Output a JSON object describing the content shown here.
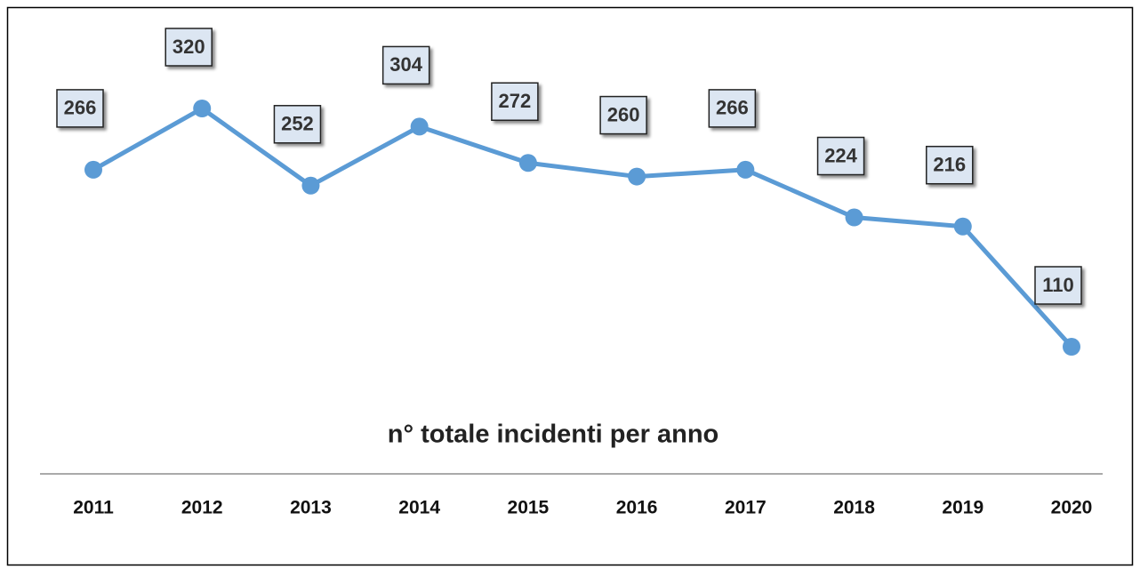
{
  "chart_data": {
    "type": "line",
    "title": "n° totale incidenti per anno",
    "categories": [
      "2011",
      "2012",
      "2013",
      "2014",
      "2015",
      "2016",
      "2017",
      "2018",
      "2019",
      "2020"
    ],
    "values": [
      266,
      320,
      252,
      304,
      272,
      260,
      266,
      224,
      216,
      110
    ],
    "color": "#5b9bd5"
  }
}
